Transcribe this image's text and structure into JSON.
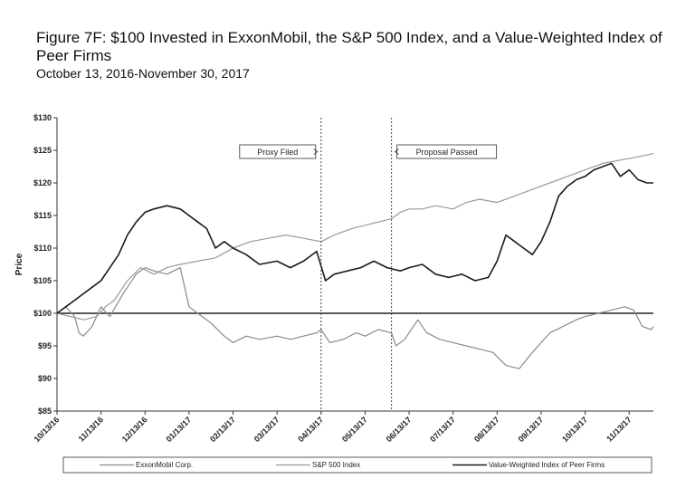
{
  "title": "Figure 7F: $100 Invested in ExxonMobil, the S&P 500 Index, and a Value-Weighted Index of Peer Firms",
  "subtitle": "October 13, 2016-November 30, 2017",
  "chart_data": {
    "type": "line",
    "ylabel": "Price",
    "xlabel": "",
    "ylim": [
      85,
      130
    ],
    "yticks": [
      "$85",
      "$90",
      "$95",
      "$100",
      "$105",
      "$110",
      "$115",
      "$120",
      "$125",
      "$130"
    ],
    "ytick_values": [
      85,
      90,
      95,
      100,
      105,
      110,
      115,
      120,
      125,
      130
    ],
    "xticks": [
      "10/13/16",
      "11/13/16",
      "12/13/16",
      "01/13/17",
      "02/13/17",
      "03/13/17",
      "04/13/17",
      "05/13/17",
      "06/13/17",
      "07/13/17",
      "08/13/17",
      "09/13/17",
      "10/13/17",
      "11/13/17"
    ],
    "x_month_index": [
      0,
      1,
      2,
      3,
      4,
      5,
      6,
      7,
      8,
      9,
      10,
      11,
      12,
      13
    ],
    "x_end_month_index": 13.55,
    "reference_line": {
      "value": 100
    },
    "events": [
      {
        "label": "Proxy Filed",
        "x_month_index": 6.0,
        "arrow": "right"
      },
      {
        "label": "Proposal Passed",
        "x_month_index": 7.6,
        "arrow": "left"
      }
    ],
    "legend_position": "bottom",
    "series": [
      {
        "name": "ExxonMobil Corp.",
        "color": "#8a8a8a",
        "width": 1.2,
        "x": [
          0,
          0.2,
          0.4,
          0.5,
          0.6,
          0.8,
          1.0,
          1.2,
          1.5,
          1.8,
          2.0,
          2.2,
          2.5,
          2.8,
          3.0,
          3.2,
          3.5,
          3.8,
          4.0,
          4.3,
          4.6,
          5.0,
          5.3,
          5.6,
          5.9,
          6.0,
          6.2,
          6.5,
          6.8,
          7.0,
          7.3,
          7.6,
          7.7,
          7.9,
          8.1,
          8.2,
          8.4,
          8.7,
          9.0,
          9.3,
          9.6,
          9.9,
          10.2,
          10.5,
          10.8,
          11.0,
          11.2,
          11.5,
          11.8,
          12.0,
          12.3,
          12.6,
          12.9,
          13.1,
          13.3,
          13.5,
          13.55
        ],
        "y": [
          100,
          101,
          99.5,
          97,
          96.5,
          98,
          101,
          99.5,
          103,
          106,
          107,
          106.5,
          106,
          107,
          101,
          100,
          98.5,
          96.5,
          95.5,
          96.5,
          96,
          96.5,
          96,
          96.5,
          97,
          97.5,
          95.5,
          96,
          97,
          96.5,
          97.5,
          97,
          95,
          96,
          98,
          99,
          97,
          96,
          95.5,
          95,
          94.5,
          94,
          92,
          91.5,
          94,
          95.5,
          97,
          98,
          99,
          99.5,
          100,
          100.5,
          101,
          100.5,
          98,
          97.5,
          98
        ]
      },
      {
        "name": "S&P 500 Index",
        "color": "#9a9a9a",
        "width": 1.2,
        "x": [
          0,
          0.3,
          0.6,
          0.9,
          1.1,
          1.3,
          1.6,
          1.9,
          2.2,
          2.5,
          2.8,
          3.2,
          3.6,
          4.0,
          4.4,
          4.8,
          5.2,
          5.6,
          6.0,
          6.3,
          6.7,
          7.0,
          7.3,
          7.6,
          7.8,
          8.0,
          8.3,
          8.6,
          9.0,
          9.3,
          9.6,
          10.0,
          10.4,
          10.8,
          11.2,
          11.6,
          12.0,
          12.4,
          12.8,
          13.2,
          13.55
        ],
        "y": [
          100,
          99.5,
          99,
          99.5,
          101,
          102,
          105,
          107,
          106,
          107,
          107.5,
          108,
          108.5,
          110,
          111,
          111.5,
          112,
          111.5,
          111,
          112,
          113,
          113.5,
          114,
          114.5,
          115.5,
          116,
          116,
          116.5,
          116,
          117,
          117.5,
          117,
          118,
          119,
          120,
          121,
          122,
          123,
          123.5,
          124,
          124.5
        ]
      },
      {
        "name": "Value-Weighted Index of Peer Firms",
        "color": "#1a1a1a",
        "width": 1.6,
        "x": [
          0,
          0.2,
          0.4,
          0.6,
          0.8,
          1.0,
          1.2,
          1.4,
          1.6,
          1.8,
          2.0,
          2.2,
          2.5,
          2.8,
          3.0,
          3.2,
          3.4,
          3.6,
          3.8,
          4.0,
          4.3,
          4.6,
          5.0,
          5.3,
          5.6,
          5.9,
          6.1,
          6.3,
          6.6,
          6.9,
          7.2,
          7.5,
          7.8,
          8.0,
          8.3,
          8.6,
          8.9,
          9.2,
          9.5,
          9.8,
          10.0,
          10.2,
          10.4,
          10.6,
          10.8,
          11.0,
          11.2,
          11.4,
          11.6,
          11.8,
          12.0,
          12.2,
          12.4,
          12.6,
          12.8,
          13.0,
          13.2,
          13.4,
          13.55
        ],
        "y": [
          100,
          101,
          102,
          103,
          104,
          105,
          107,
          109,
          112,
          114,
          115.5,
          116,
          116.5,
          116,
          115,
          114,
          113,
          110,
          111,
          110,
          109,
          107.5,
          108,
          107,
          108,
          109.5,
          105,
          106,
          106.5,
          107,
          108,
          107,
          106.5,
          107,
          107.5,
          106,
          105.5,
          106,
          105,
          105.5,
          108,
          112,
          111,
          110,
          109,
          111,
          114,
          118,
          119.5,
          120.5,
          121,
          122,
          122.5,
          123,
          121,
          122,
          120.5,
          120,
          120
        ]
      }
    ]
  }
}
